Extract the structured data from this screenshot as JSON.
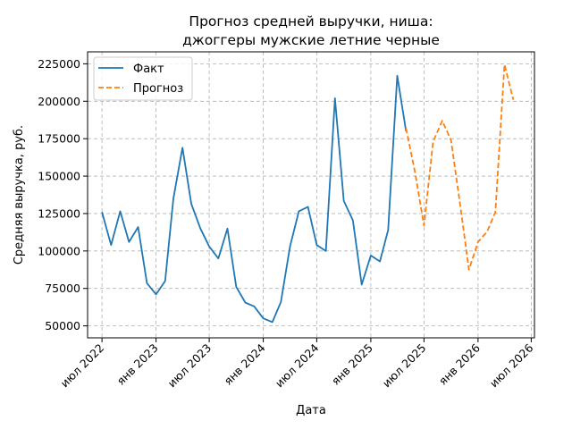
{
  "chart_data": {
    "type": "line",
    "title": [
      "Прогноз средней выручки, ниша:",
      "джоггеры мужские летние черные"
    ],
    "xlabel": "Дата",
    "ylabel": "Средняя выручка, руб.",
    "x_range": [
      "2022-05-13",
      "2026-07-12"
    ],
    "ylim": [
      42000,
      233000
    ],
    "x_ticks": [
      {
        "date": "2022-07-01",
        "label": "июл 2022"
      },
      {
        "date": "2023-01-01",
        "label": "янв 2023"
      },
      {
        "date": "2023-07-01",
        "label": "июл 2023"
      },
      {
        "date": "2024-01-01",
        "label": "янв 2024"
      },
      {
        "date": "2024-07-01",
        "label": "июл 2024"
      },
      {
        "date": "2025-01-01",
        "label": "янв 2025"
      },
      {
        "date": "2025-07-01",
        "label": "июл 2025"
      },
      {
        "date": "2026-01-01",
        "label": "янв 2026"
      },
      {
        "date": "2026-07-01",
        "label": "июл 2026"
      }
    ],
    "y_ticks": [
      {
        "value": 50000,
        "label": "50000"
      },
      {
        "value": 75000,
        "label": "75000"
      },
      {
        "value": 100000,
        "label": "100000"
      },
      {
        "value": 125000,
        "label": "125000"
      },
      {
        "value": 150000,
        "label": "150000"
      },
      {
        "value": 175000,
        "label": "175000"
      },
      {
        "value": 200000,
        "label": "200000"
      },
      {
        "value": 225000,
        "label": "225000"
      }
    ],
    "grid": true,
    "legend_position": "top-left",
    "series": [
      {
        "name": "Факт",
        "color": "#1f77b4",
        "style": "solid",
        "points": [
          {
            "x": "2022-07-01",
            "y": 126000
          },
          {
            "x": "2022-08-01",
            "y": 104000
          },
          {
            "x": "2022-09-01",
            "y": 126500
          },
          {
            "x": "2022-10-01",
            "y": 106000
          },
          {
            "x": "2022-11-01",
            "y": 116000
          },
          {
            "x": "2022-12-01",
            "y": 78500
          },
          {
            "x": "2023-01-01",
            "y": 71000
          },
          {
            "x": "2023-02-01",
            "y": 80000
          },
          {
            "x": "2023-03-01",
            "y": 135000
          },
          {
            "x": "2023-04-01",
            "y": 169000
          },
          {
            "x": "2023-05-01",
            "y": 131500
          },
          {
            "x": "2023-06-01",
            "y": 115000
          },
          {
            "x": "2023-07-01",
            "y": 103000
          },
          {
            "x": "2023-08-01",
            "y": 95000
          },
          {
            "x": "2023-09-01",
            "y": 115000
          },
          {
            "x": "2023-10-01",
            "y": 76000
          },
          {
            "x": "2023-11-01",
            "y": 65500
          },
          {
            "x": "2023-12-01",
            "y": 63000
          },
          {
            "x": "2024-01-01",
            "y": 55000
          },
          {
            "x": "2024-02-01",
            "y": 52500
          },
          {
            "x": "2024-03-01",
            "y": 66000
          },
          {
            "x": "2024-04-01",
            "y": 103000
          },
          {
            "x": "2024-05-01",
            "y": 126500
          },
          {
            "x": "2024-06-01",
            "y": 129500
          },
          {
            "x": "2024-07-01",
            "y": 104000
          },
          {
            "x": "2024-08-01",
            "y": 100000
          },
          {
            "x": "2024-09-01",
            "y": 202000
          },
          {
            "x": "2024-10-01",
            "y": 133500
          },
          {
            "x": "2024-11-01",
            "y": 120500
          },
          {
            "x": "2024-12-01",
            "y": 77500
          },
          {
            "x": "2025-01-01",
            "y": 97000
          },
          {
            "x": "2025-02-01",
            "y": 93000
          },
          {
            "x": "2025-03-01",
            "y": 114000
          },
          {
            "x": "2025-04-01",
            "y": 217000
          },
          {
            "x": "2025-05-01",
            "y": 180000
          }
        ]
      },
      {
        "name": "Прогноз",
        "color": "#ff7f0e",
        "style": "dashed",
        "points": [
          {
            "x": "2025-05-01",
            "y": 182000
          },
          {
            "x": "2025-06-01",
            "y": 152000
          },
          {
            "x": "2025-07-01",
            "y": 117000
          },
          {
            "x": "2025-08-01",
            "y": 173000
          },
          {
            "x": "2025-09-01",
            "y": 187000
          },
          {
            "x": "2025-10-01",
            "y": 174000
          },
          {
            "x": "2025-11-01",
            "y": 131000
          },
          {
            "x": "2025-12-01",
            "y": 87500
          },
          {
            "x": "2026-01-01",
            "y": 106000
          },
          {
            "x": "2026-02-01",
            "y": 113000
          },
          {
            "x": "2026-03-01",
            "y": 126000
          },
          {
            "x": "2026-04-01",
            "y": 224500
          },
          {
            "x": "2026-05-01",
            "y": 201000
          }
        ]
      }
    ]
  }
}
